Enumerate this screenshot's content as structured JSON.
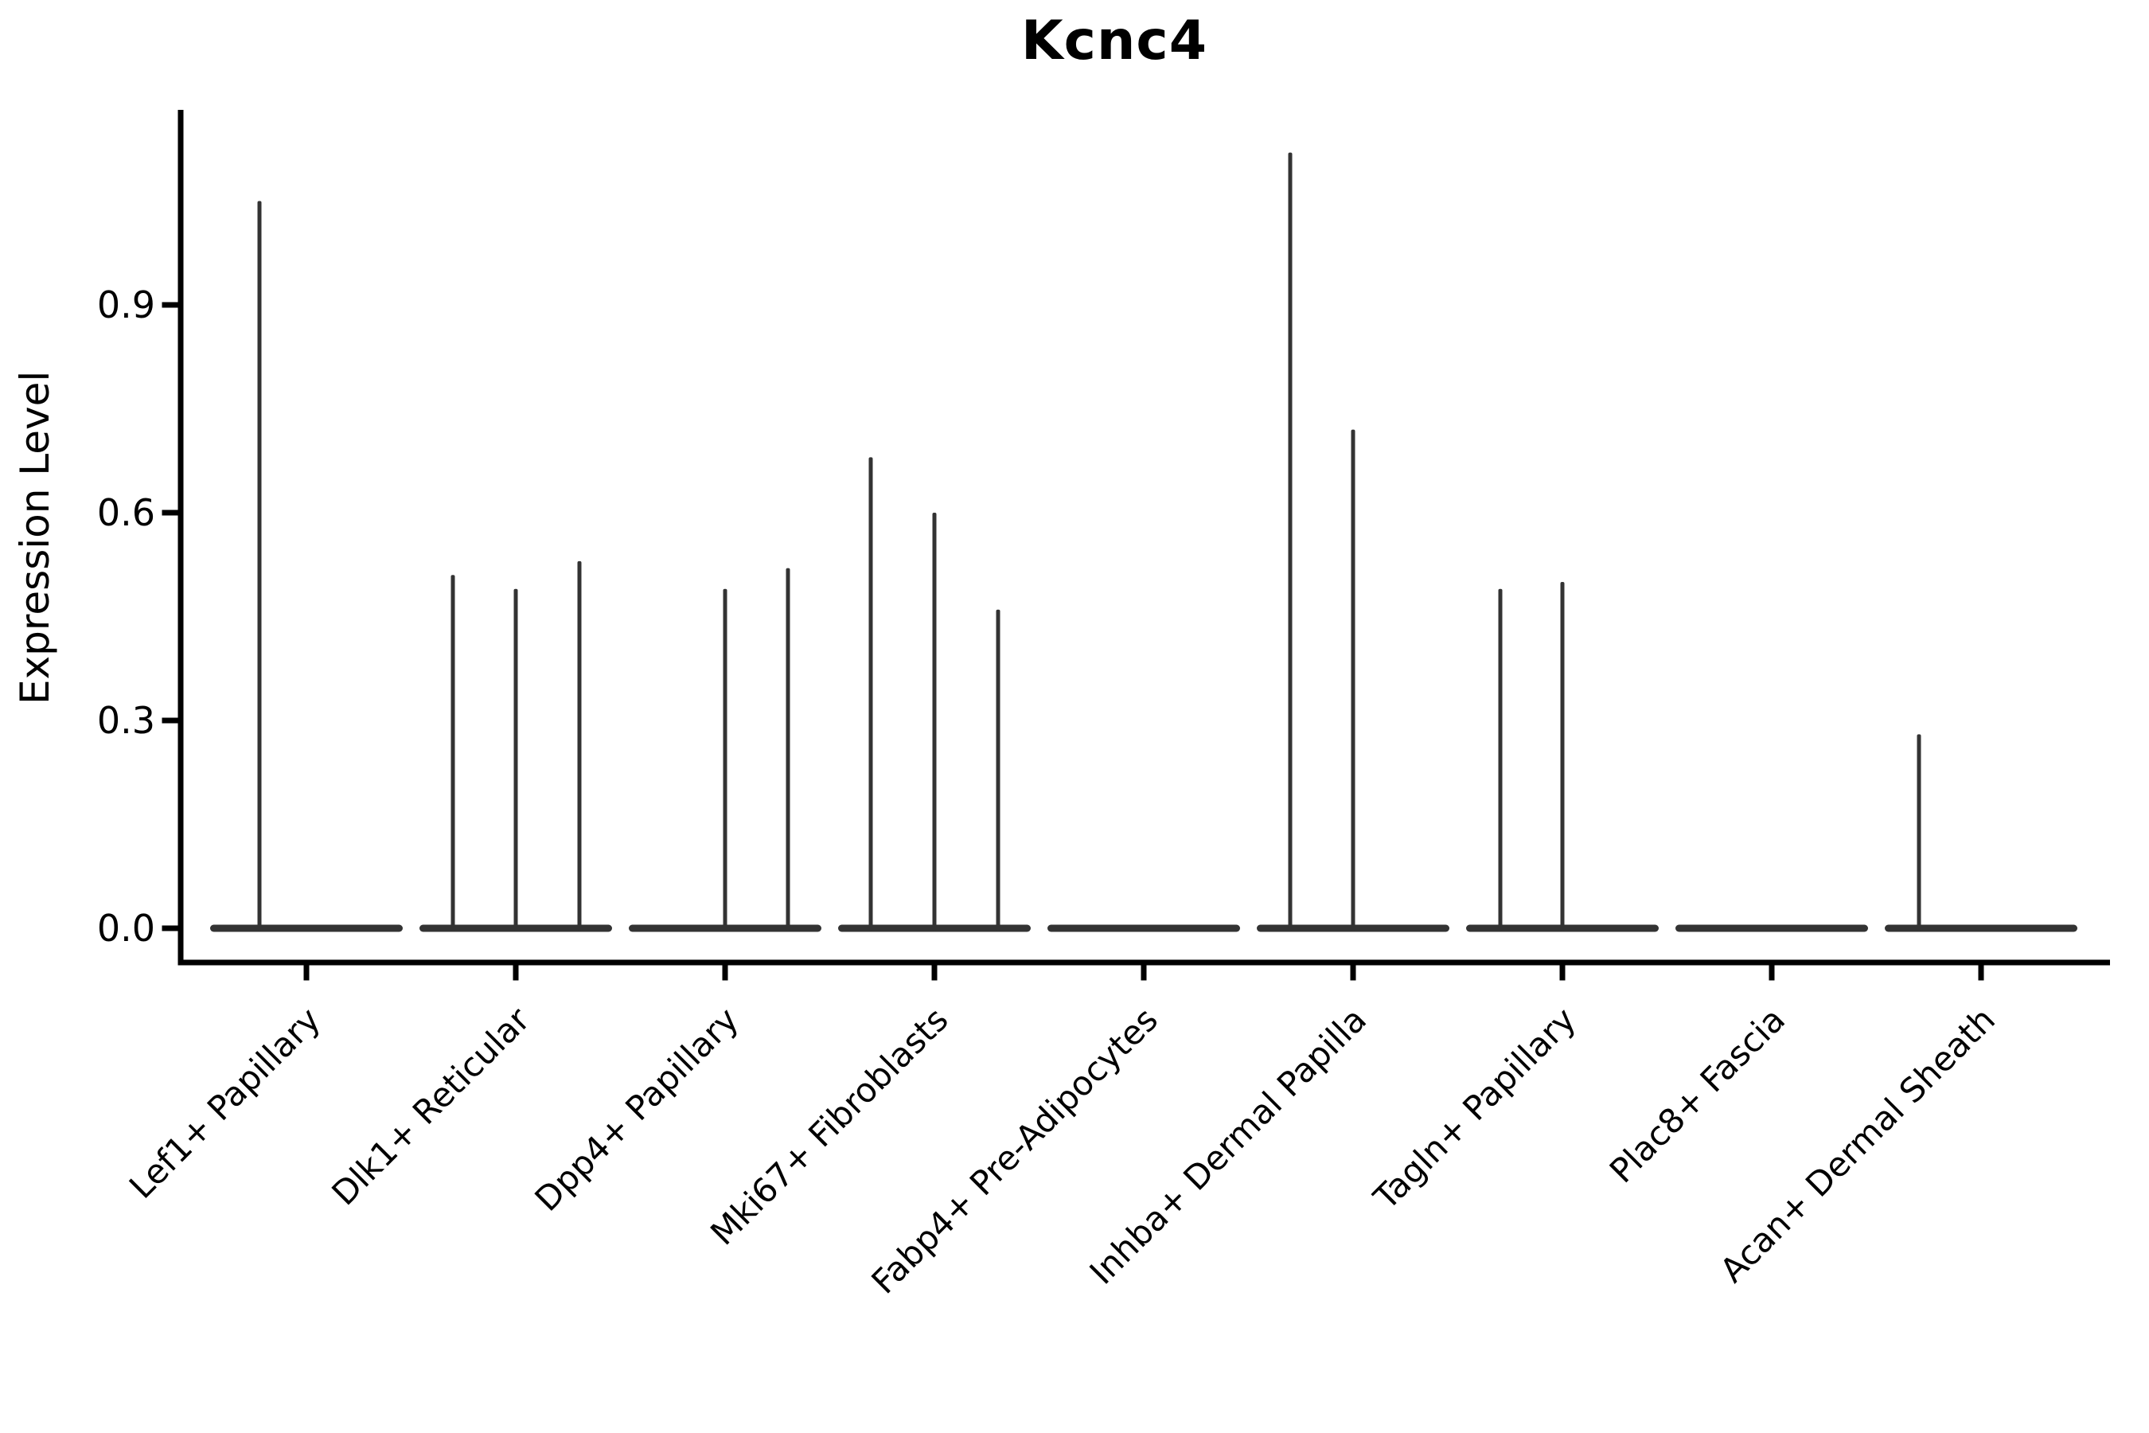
{
  "chart_data": {
    "type": "violin",
    "title": "Kcnc4",
    "ylabel": "Expression Level",
    "xlabel": "",
    "grid": false,
    "legend": "none",
    "background": "#ffffff",
    "ylim": [
      0.0,
      1.18
    ],
    "yticks": [
      "0.0",
      "0.3",
      "0.6",
      "0.9"
    ],
    "x_label_rotation": 45,
    "categories": [
      "Lef1+ Papillary",
      "Dlk1+ Reticular",
      "Dpp4+ Papillary",
      "Mki67+ Fibroblasts",
      "Fabp4+ Pre-Adipocytes",
      "Inhba+ Dermal Papilla",
      "Tagln+ Papillary",
      "Plac8+ Fascia",
      "Acan+ Dermal Sheath"
    ],
    "violins": [
      {
        "category": "Lef1+ Papillary",
        "base_value": 0.0,
        "spikes": [
          {
            "offset": -59,
            "peak": 1.05
          }
        ]
      },
      {
        "category": "Dlk1+ Reticular",
        "base_value": 0.0,
        "spikes": [
          {
            "offset": -79,
            "peak": 0.51
          },
          {
            "offset": 0,
            "peak": 0.49
          },
          {
            "offset": 80,
            "peak": 0.53
          }
        ]
      },
      {
        "category": "Dpp4+ Papillary",
        "base_value": 0.0,
        "spikes": [
          {
            "offset": 0,
            "peak": 0.49
          },
          {
            "offset": 79,
            "peak": 0.52
          }
        ]
      },
      {
        "category": "Mki67+ Fibroblasts",
        "base_value": 0.0,
        "spikes": [
          {
            "offset": -80,
            "peak": 0.68
          },
          {
            "offset": 0,
            "peak": 0.6
          },
          {
            "offset": 80,
            "peak": 0.46
          }
        ]
      },
      {
        "category": "Fabp4+ Pre-Adipocytes",
        "base_value": 0.0,
        "spikes": []
      },
      {
        "category": "Inhba+ Dermal Papilla",
        "base_value": 0.0,
        "spikes": [
          {
            "offset": -79,
            "peak": 1.12
          },
          {
            "offset": 0,
            "peak": 0.72
          }
        ]
      },
      {
        "category": "Tagln+ Papillary",
        "base_value": 0.0,
        "spikes": [
          {
            "offset": -78,
            "peak": 0.49
          },
          {
            "offset": 0,
            "peak": 0.5
          }
        ]
      },
      {
        "category": "Plac8+ Fascia",
        "base_value": 0.0,
        "spikes": []
      },
      {
        "category": "Acan+ Dermal Sheath",
        "base_value": 0.0,
        "spikes": [
          {
            "offset": -78,
            "peak": 0.28
          }
        ]
      }
    ],
    "colors": {
      "violin": "#333333",
      "axis": "#000000",
      "text": "#000000"
    }
  }
}
